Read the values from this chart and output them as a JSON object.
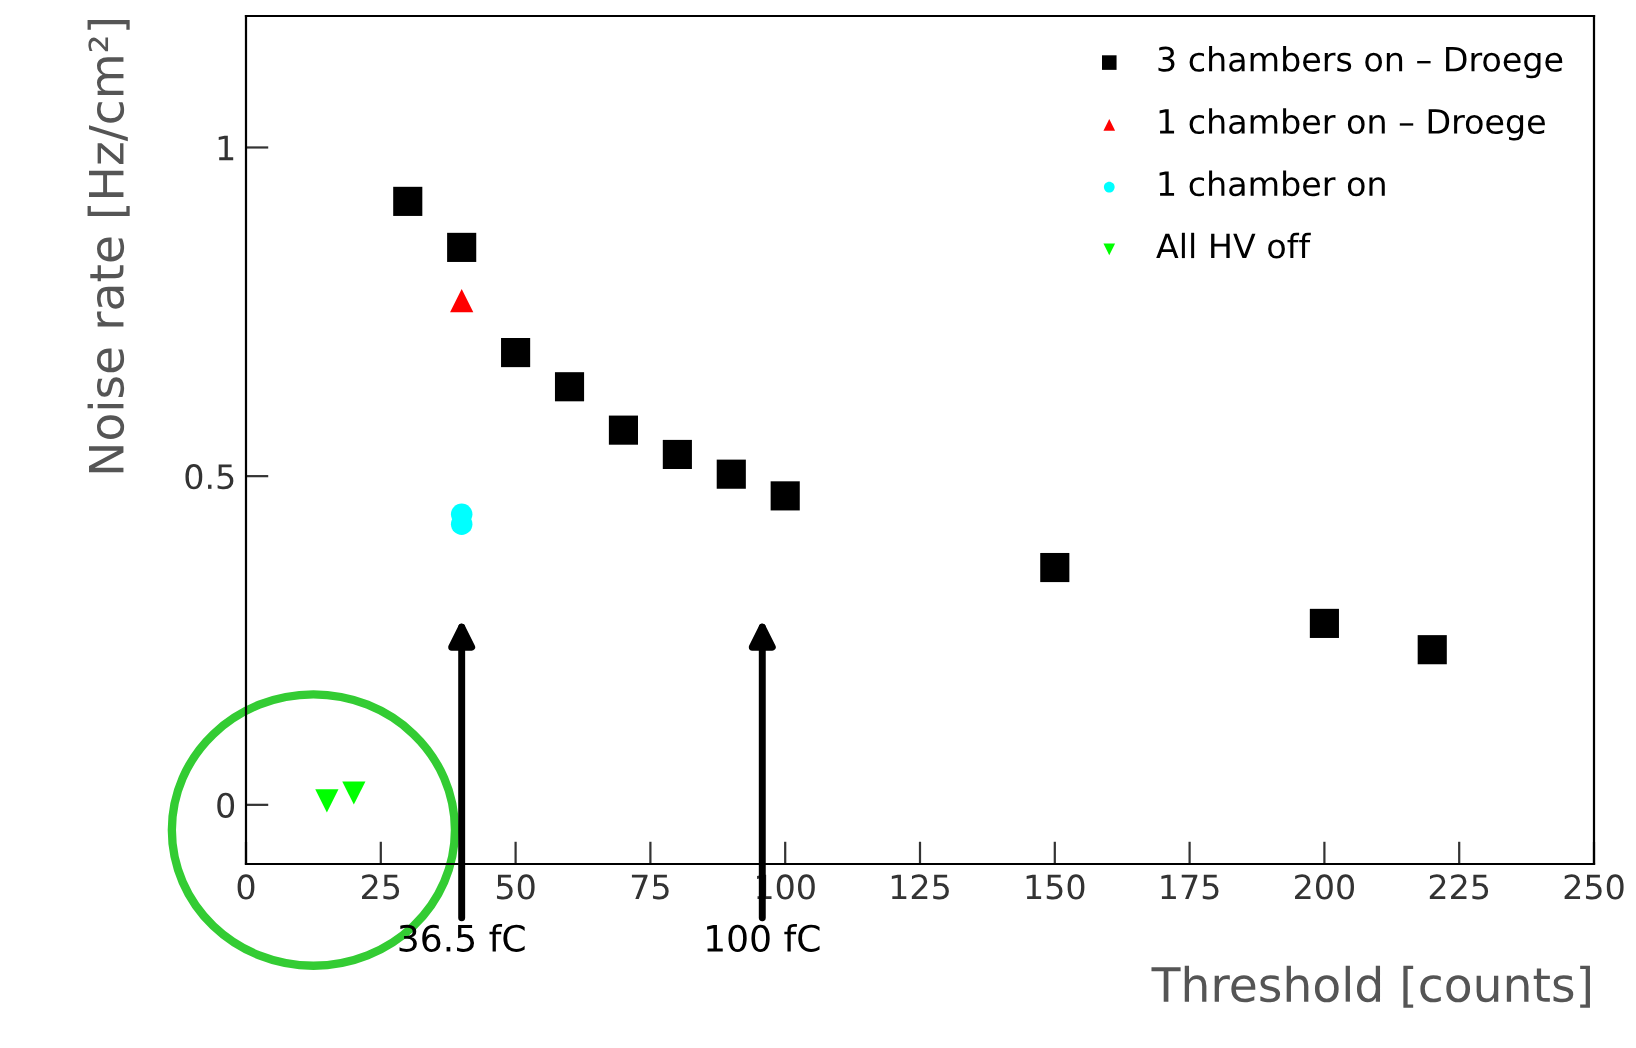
{
  "chart_data": {
    "type": "scatter",
    "xlabel": "Threshold [counts]",
    "ylabel": "Noise rate [Hz/cm²]",
    "xlim": [
      0,
      250
    ],
    "ylim": [
      -0.09,
      1.2
    ],
    "xticks": [
      0,
      25,
      50,
      75,
      100,
      125,
      150,
      175,
      200,
      225,
      250
    ],
    "yticks": [
      0,
      0.5,
      1
    ],
    "grid": false,
    "legend": "top right",
    "series": [
      {
        "name": "3 chambers on – Droege",
        "color": "#000000",
        "marker": "square",
        "x": [
          30,
          40,
          50,
          60,
          70,
          80,
          90,
          100,
          150,
          200,
          220
        ],
        "values": [
          0.918,
          0.848,
          0.688,
          0.636,
          0.57,
          0.533,
          0.503,
          0.47,
          0.361,
          0.276,
          0.236
        ]
      },
      {
        "name": "1 chamber on – Droege",
        "color": "#ff0000",
        "marker": "triangle",
        "x": [
          40
        ],
        "values": [
          0.767
        ]
      },
      {
        "name": "1 chamber on",
        "color": "#00ffff",
        "marker": "circle",
        "x": [
          40,
          40
        ],
        "values": [
          0.442,
          0.427
        ]
      },
      {
        "name": "All HV off",
        "color": "#00ff00",
        "marker": "triangle_down",
        "x": [
          15,
          20
        ],
        "values": [
          0.006,
          0.018
        ]
      }
    ],
    "annotations": [
      "36.5 fC",
      "100 fC"
    ]
  }
}
